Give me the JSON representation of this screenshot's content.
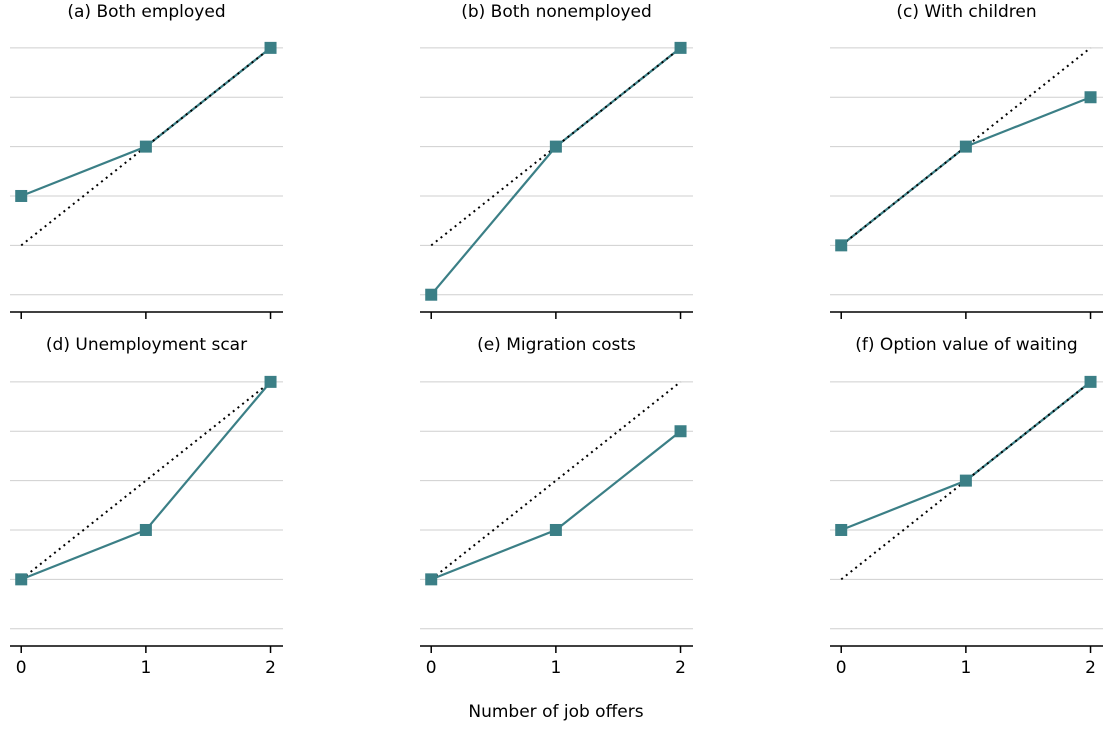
{
  "chart_data": [
    {
      "type": "line",
      "title": "(a) Both employed",
      "x": [
        0,
        1,
        2
      ],
      "series": [
        {
          "color": "#3b7f86",
          "values": [
            2,
            3,
            5
          ],
          "marker": "square",
          "style": "solid"
        },
        {
          "color": "#000000",
          "values": [
            1,
            3,
            5
          ],
          "style": "dotted"
        }
      ],
      "xlim": [
        -0.09,
        2.1
      ],
      "ylim": [
        -0.35,
        5.2
      ],
      "xticks": [
        0,
        1,
        2
      ],
      "yticks": [
        0,
        1,
        2,
        3,
        4,
        5
      ],
      "xtick_labels": false,
      "ytick_labels": false,
      "grid": true
    },
    {
      "type": "line",
      "title": "(b) Both nonemployed",
      "x": [
        0,
        1,
        2
      ],
      "series": [
        {
          "color": "#3b7f86",
          "values": [
            0,
            3,
            5
          ],
          "marker": "square",
          "style": "solid"
        },
        {
          "color": "#000000",
          "values": [
            1,
            3,
            5
          ],
          "style": "dotted"
        }
      ],
      "xlim": [
        -0.09,
        2.1
      ],
      "ylim": [
        -0.35,
        5.2
      ],
      "xticks": [
        0,
        1,
        2
      ],
      "yticks": [
        0,
        1,
        2,
        3,
        4,
        5
      ],
      "xtick_labels": false,
      "ytick_labels": false,
      "grid": true
    },
    {
      "type": "line",
      "title": "(c) With children",
      "x": [
        0,
        1,
        2
      ],
      "series": [
        {
          "color": "#3b7f86",
          "values": [
            1,
            3,
            4
          ],
          "marker": "square",
          "style": "solid"
        },
        {
          "color": "#000000",
          "values": [
            1,
            3,
            5
          ],
          "style": "dotted"
        }
      ],
      "xlim": [
        -0.09,
        2.1
      ],
      "ylim": [
        -0.35,
        5.2
      ],
      "xticks": [
        0,
        1,
        2
      ],
      "yticks": [
        0,
        1,
        2,
        3,
        4,
        5
      ],
      "xtick_labels": false,
      "ytick_labels": false,
      "grid": true
    },
    {
      "type": "line",
      "title": "(d) Unemployment scar",
      "x": [
        0,
        1,
        2
      ],
      "series": [
        {
          "color": "#3b7f86",
          "values": [
            1,
            2,
            5
          ],
          "marker": "square",
          "style": "solid"
        },
        {
          "color": "#000000",
          "values": [
            1,
            3,
            5
          ],
          "style": "dotted"
        }
      ],
      "xlim": [
        -0.09,
        2.1
      ],
      "ylim": [
        -0.35,
        5.2
      ],
      "xticks": [
        0,
        1,
        2
      ],
      "yticks": [
        0,
        1,
        2,
        3,
        4,
        5
      ],
      "xtick_labels": true,
      "ytick_labels": false,
      "grid": true
    },
    {
      "type": "line",
      "title": "(e) Migration costs",
      "x": [
        0,
        1,
        2
      ],
      "series": [
        {
          "color": "#3b7f86",
          "values": [
            1,
            2,
            4
          ],
          "marker": "square",
          "style": "solid"
        },
        {
          "color": "#000000",
          "values": [
            1,
            3,
            5
          ],
          "style": "dotted"
        }
      ],
      "xlim": [
        -0.09,
        2.1
      ],
      "ylim": [
        -0.35,
        5.2
      ],
      "xticks": [
        0,
        1,
        2
      ],
      "yticks": [
        0,
        1,
        2,
        3,
        4,
        5
      ],
      "xtick_labels": true,
      "ytick_labels": false,
      "grid": true
    },
    {
      "type": "line",
      "title": "(f) Option value of waiting",
      "x": [
        0,
        1,
        2
      ],
      "series": [
        {
          "color": "#3b7f86",
          "values": [
            2,
            3,
            5
          ],
          "marker": "square",
          "style": "solid"
        },
        {
          "color": "#000000",
          "values": [
            1,
            3,
            5
          ],
          "style": "dotted"
        }
      ],
      "xlim": [
        -0.09,
        2.1
      ],
      "ylim": [
        -0.35,
        5.2
      ],
      "xticks": [
        0,
        1,
        2
      ],
      "yticks": [
        0,
        1,
        2,
        3,
        4,
        5
      ],
      "xtick_labels": true,
      "ytick_labels": false,
      "grid": true
    }
  ],
  "xlabel": "Number of job offers"
}
